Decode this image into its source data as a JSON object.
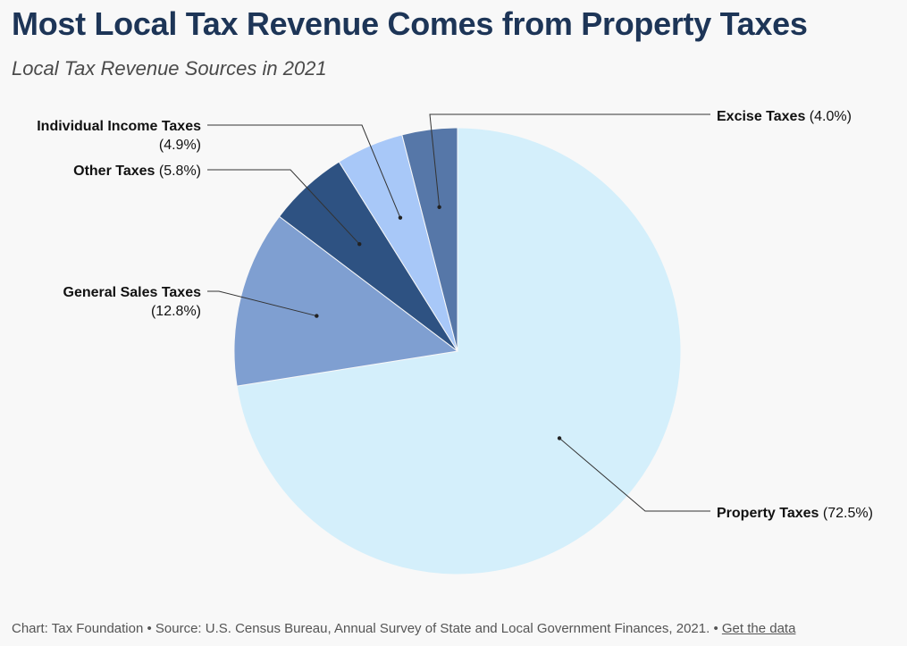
{
  "header": {
    "title": "Most Local Tax Revenue Comes from Property Taxes",
    "subtitle": "Local Tax Revenue Sources in 2021"
  },
  "footer": {
    "credit": "Chart: Tax Foundation • Source: U.S. Census Bureau, Annual Survey of State and Local Government Finances, 2021.",
    "separator": "•",
    "link_label": "Get the data"
  },
  "chart_data": {
    "type": "pie",
    "title": "Most Local Tax Revenue Comes from Property Taxes",
    "subtitle": "Local Tax Revenue Sources in 2021",
    "start_angle_deg": 0,
    "direction": "clockwise",
    "slices": [
      {
        "name": "Property Taxes",
        "value": 72.5,
        "value_label": "(72.5%)",
        "color": "#d4effb"
      },
      {
        "name": "General Sales Taxes",
        "value": 12.8,
        "value_label": "(12.8%)",
        "color": "#7f9fd1"
      },
      {
        "name": "Other Taxes",
        "value": 5.8,
        "value_label": "(5.8%)",
        "color": "#2e5282"
      },
      {
        "name": "Individual Income Taxes",
        "value": 4.9,
        "value_label": "(4.9%)",
        "color": "#a8c8f8"
      },
      {
        "name": "Excise Taxes",
        "value": 4.0,
        "value_label": "(4.0%)",
        "color": "#5677a8"
      }
    ]
  }
}
